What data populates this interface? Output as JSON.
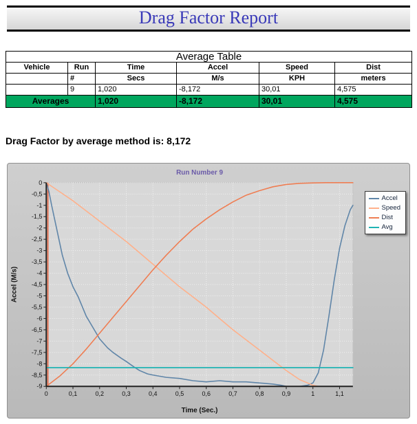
{
  "report": {
    "title": "Drag Factor Report"
  },
  "average_table": {
    "title": "Average Table",
    "columns": [
      {
        "label": "Vehicle",
        "sub": ""
      },
      {
        "label": "Run",
        "sub": "#"
      },
      {
        "label": "Time",
        "sub": "Secs"
      },
      {
        "label": "Accel",
        "sub": "M/s"
      },
      {
        "label": "Speed",
        "sub": "KPH"
      },
      {
        "label": "Dist",
        "sub": "meters"
      }
    ],
    "data_row": {
      "vehicle": "",
      "run": "9",
      "time": "1,020",
      "accel": "-8,172",
      "speed": "30,01",
      "dist": "4,575"
    },
    "averages_row": {
      "label": "Averages",
      "time": "1,020",
      "accel": "-8,172",
      "speed": "30,01",
      "dist": "4,575"
    },
    "averages_color": "#00A65E"
  },
  "drag_factor_line": "Drag Factor by average method is: 8,172",
  "chart_data": {
    "type": "line",
    "title": "Run Number 9",
    "xlabel": "Time (Sec.)",
    "ylabel": "Accel (M/s)",
    "xlim": [
      0,
      1.15
    ],
    "ylim": [
      -9,
      0
    ],
    "grid": true,
    "legend_position": "right",
    "decimal_separator": ",",
    "x_ticks": [
      0,
      0.1,
      0.2,
      0.3,
      0.4,
      0.5,
      0.6,
      0.7,
      0.8,
      0.9,
      1,
      1.1
    ],
    "y_ticks": [
      0,
      -0.5,
      -1,
      -1.5,
      -2,
      -2.5,
      -3,
      -3.5,
      -4,
      -4.5,
      -5,
      -5.5,
      -6,
      -6.5,
      -7,
      -7.5,
      -8,
      -8.5,
      -9
    ],
    "start_line": {
      "x": 0.006,
      "color": "#e8603c"
    },
    "series": [
      {
        "name": "Accel",
        "color": "#5f85a8",
        "width": 1.6,
        "points": [
          [
            0,
            0
          ],
          [
            0.01,
            -0.4
          ],
          [
            0.02,
            -1.0
          ],
          [
            0.04,
            -2.1
          ],
          [
            0.06,
            -3.2
          ],
          [
            0.08,
            -4.0
          ],
          [
            0.1,
            -4.6
          ],
          [
            0.12,
            -5.05
          ],
          [
            0.15,
            -5.9
          ],
          [
            0.18,
            -6.5
          ],
          [
            0.2,
            -6.9
          ],
          [
            0.23,
            -7.3
          ],
          [
            0.25,
            -7.5
          ],
          [
            0.28,
            -7.75
          ],
          [
            0.3,
            -7.9
          ],
          [
            0.33,
            -8.15
          ],
          [
            0.35,
            -8.3
          ],
          [
            0.38,
            -8.45
          ],
          [
            0.4,
            -8.5
          ],
          [
            0.45,
            -8.6
          ],
          [
            0.5,
            -8.65
          ],
          [
            0.55,
            -8.75
          ],
          [
            0.6,
            -8.8
          ],
          [
            0.65,
            -8.75
          ],
          [
            0.7,
            -8.8
          ],
          [
            0.75,
            -8.8
          ],
          [
            0.8,
            -8.85
          ],
          [
            0.85,
            -8.9
          ],
          [
            0.88,
            -8.95
          ],
          [
            0.9,
            -9.0
          ],
          [
            0.95,
            -9.0
          ],
          [
            0.98,
            -8.95
          ],
          [
            1.0,
            -8.85
          ],
          [
            1.02,
            -8.4
          ],
          [
            1.04,
            -7.4
          ],
          [
            1.06,
            -5.9
          ],
          [
            1.08,
            -4.3
          ],
          [
            1.1,
            -2.9
          ],
          [
            1.12,
            -1.9
          ],
          [
            1.14,
            -1.2
          ],
          [
            1.15,
            -1.0
          ]
        ]
      },
      {
        "name": "Speed",
        "color": "#ffb08a",
        "width": 1.6,
        "points": [
          [
            0,
            0
          ],
          [
            0.05,
            -0.4
          ],
          [
            0.1,
            -0.8
          ],
          [
            0.15,
            -1.25
          ],
          [
            0.2,
            -1.7
          ],
          [
            0.25,
            -2.15
          ],
          [
            0.3,
            -2.6
          ],
          [
            0.35,
            -3.1
          ],
          [
            0.4,
            -3.6
          ],
          [
            0.45,
            -4.1
          ],
          [
            0.5,
            -4.6
          ],
          [
            0.55,
            -5.05
          ],
          [
            0.6,
            -5.5
          ],
          [
            0.65,
            -6.0
          ],
          [
            0.7,
            -6.5
          ],
          [
            0.75,
            -6.95
          ],
          [
            0.8,
            -7.4
          ],
          [
            0.85,
            -7.85
          ],
          [
            0.9,
            -8.3
          ],
          [
            0.95,
            -8.7
          ],
          [
            1.0,
            -8.95
          ],
          [
            1.02,
            -9.0
          ]
        ]
      },
      {
        "name": "Dist",
        "color": "#ef7d52",
        "width": 1.6,
        "points": [
          [
            0,
            -9.0
          ],
          [
            0.05,
            -8.55
          ],
          [
            0.1,
            -8.0
          ],
          [
            0.15,
            -7.35
          ],
          [
            0.2,
            -6.65
          ],
          [
            0.25,
            -5.95
          ],
          [
            0.3,
            -5.25
          ],
          [
            0.35,
            -4.55
          ],
          [
            0.4,
            -3.85
          ],
          [
            0.45,
            -3.2
          ],
          [
            0.5,
            -2.6
          ],
          [
            0.55,
            -2.05
          ],
          [
            0.6,
            -1.6
          ],
          [
            0.65,
            -1.2
          ],
          [
            0.7,
            -0.85
          ],
          [
            0.75,
            -0.55
          ],
          [
            0.8,
            -0.35
          ],
          [
            0.85,
            -0.18
          ],
          [
            0.9,
            -0.08
          ],
          [
            0.95,
            -0.03
          ],
          [
            1.0,
            -0.01
          ],
          [
            1.05,
            0
          ],
          [
            1.1,
            0
          ],
          [
            1.15,
            0
          ]
        ]
      },
      {
        "name": "Avg",
        "color": "#1fb3b3",
        "width": 1.8,
        "points": [
          [
            0,
            -8.172
          ],
          [
            1.15,
            -8.172
          ]
        ]
      }
    ]
  }
}
